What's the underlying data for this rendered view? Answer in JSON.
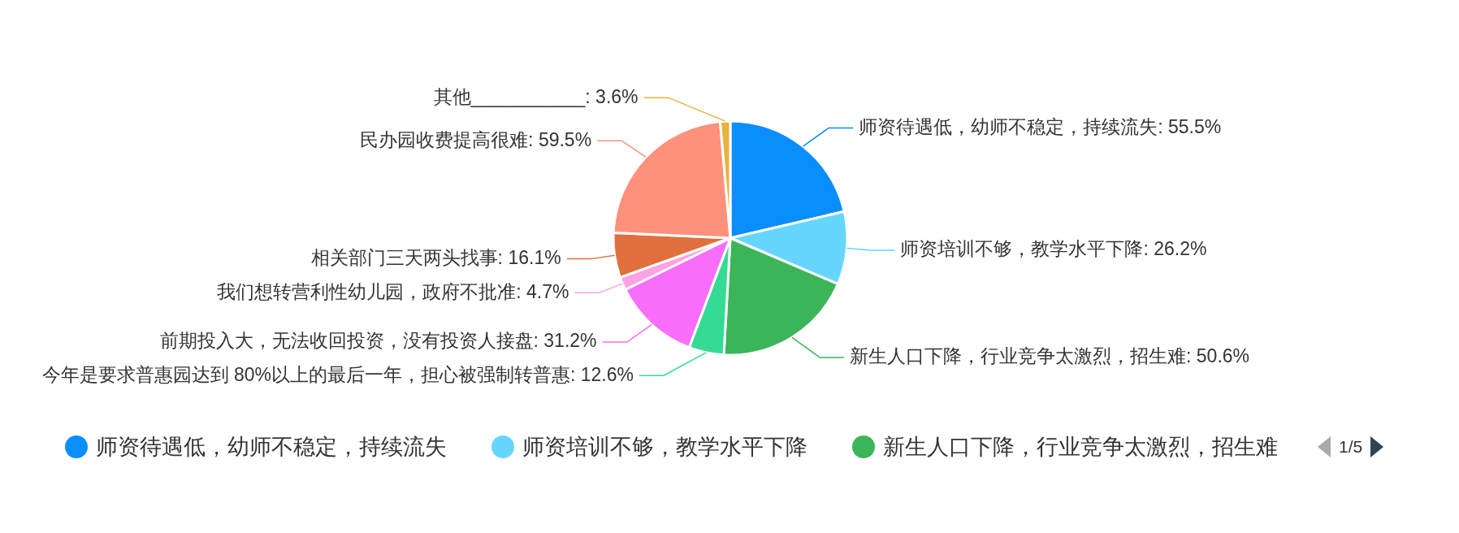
{
  "chart_data": {
    "type": "pie",
    "categories": [
      "师资待遇低，幼师不稳定，持续流失",
      "师资培训不够，教学水平下降",
      "新生人口下降，行业竞争太激烈，招生难",
      "今年是要求普惠园达到 80%以上的最后一年，担心被强制转普惠",
      "前期投入大，无法收回投资，没有投资人接盘",
      "我们想转营利性幼儿园，政府不批准",
      "相关部门三天两头找事",
      "民办园收费提高很难",
      "其他___________"
    ],
    "values": [
      55.5,
      26.2,
      50.6,
      12.6,
      31.2,
      4.7,
      16.1,
      59.5,
      3.6
    ],
    "colors": [
      "#0a8efc",
      "#66d6fe",
      "#3cb55a",
      "#35db94",
      "#f86efa",
      "#fca3e4",
      "#e0703e",
      "#fd917c",
      "#e8b23e"
    ],
    "value_labels": [
      ": 55.5%",
      ": 26.2%",
      ": 50.6%",
      ": 12.6%",
      ": 31.2%",
      ": 4.7%",
      ": 16.1%",
      ": 59.5%",
      ": 3.6%"
    ],
    "legend": "bottom",
    "annotations": [
      "1/5"
    ]
  }
}
